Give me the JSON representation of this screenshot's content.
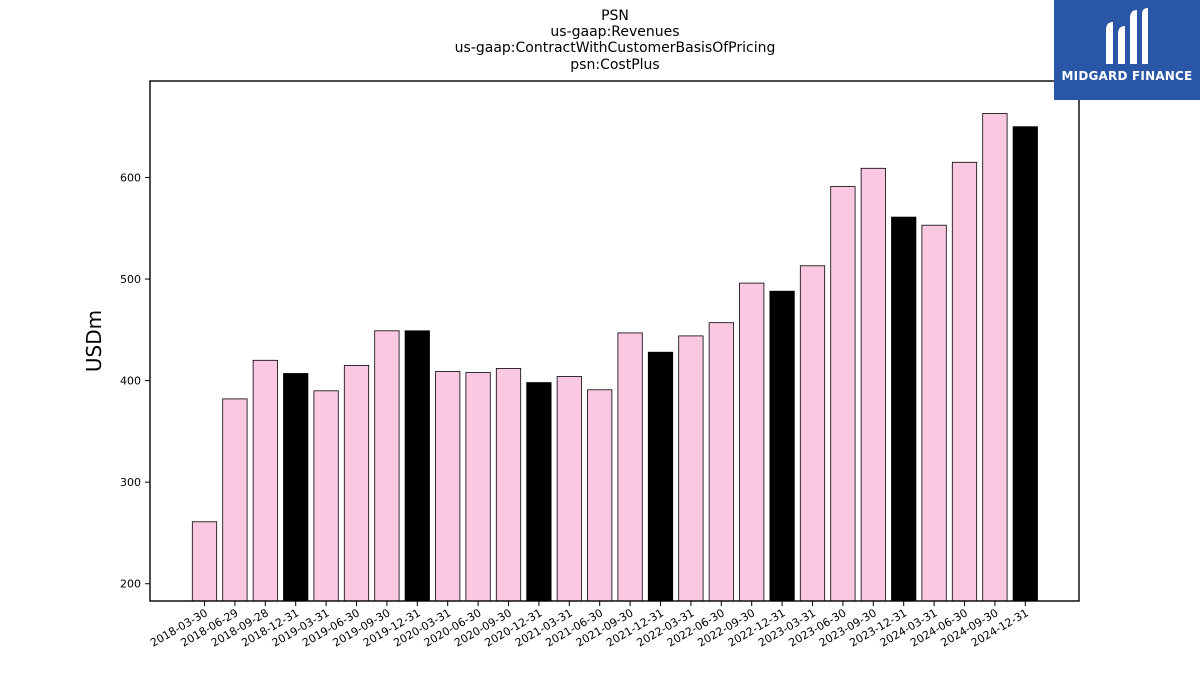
{
  "logo": {
    "text": "MIDGARD FINANCE",
    "background": "#2a56a8"
  },
  "chart_data": {
    "type": "bar",
    "title_lines": [
      "PSN",
      "us-gaap:Revenues",
      "us-gaap:ContractWithCustomerBasisOfPricing",
      "psn:CostPlus"
    ],
    "xlabel": "",
    "ylabel": "USDm",
    "ylim": [
      183,
      695
    ],
    "yticks": [
      200,
      300,
      400,
      500,
      600
    ],
    "grid": false,
    "categories": [
      "2018-03-30",
      "2018-06-29",
      "2018-09-28",
      "2018-12-31",
      "2019-03-31",
      "2019-06-30",
      "2019-09-30",
      "2019-12-31",
      "2020-03-31",
      "2020-06-30",
      "2020-09-30",
      "2020-12-31",
      "2021-03-31",
      "2021-06-30",
      "2021-09-30",
      "2021-12-31",
      "2022-03-31",
      "2022-06-30",
      "2022-09-30",
      "2022-12-31",
      "2023-03-31",
      "2023-06-30",
      "2023-09-30",
      "2023-12-31",
      "2024-03-31",
      "2024-06-30",
      "2024-09-30",
      "2024-12-31"
    ],
    "values": [
      261,
      382,
      420,
      407,
      390,
      415,
      449,
      449,
      409,
      408,
      412,
      398,
      404,
      391,
      447,
      428,
      444,
      457,
      496,
      488,
      513,
      591,
      609,
      561,
      553,
      615,
      663,
      650
    ],
    "colors": {
      "quarter": "#fbc8e2",
      "year_end": "#000000",
      "edge": "#000000"
    }
  }
}
